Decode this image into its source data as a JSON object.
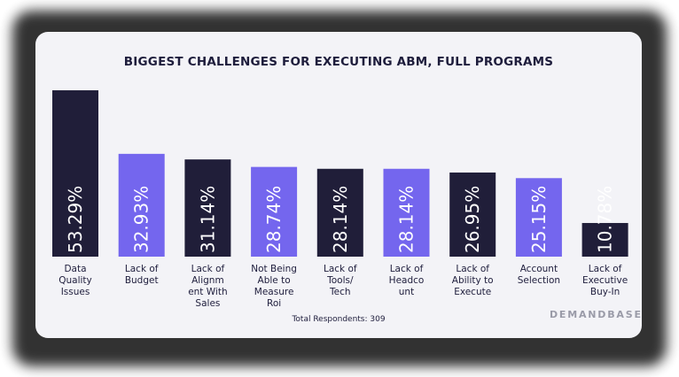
{
  "title": "BIGGEST CHALLENGES FOR EXECUTING ABM, FULL PROGRAMS",
  "footnote": "Total Respondents: 309",
  "logo": "DEMANDBASE",
  "colors": {
    "dark": "#201e39",
    "purple": "#7466ee",
    "background": "#f3f3f7"
  },
  "chart_data": {
    "type": "bar",
    "title": "BIGGEST CHALLENGES FOR EXECUTING ABM, FULL PROGRAMS",
    "categories": [
      "Data Quality Issues",
      "Lack of Budget",
      "Lack of Alignm ent With Sales",
      "Not Being Able to Measure Roi",
      "Lack of Tools/ Tech",
      "Lack of Headco unt",
      "Lack of Ability to Execute",
      "Account Selection",
      "Lack of Executive Buy-In"
    ],
    "category_lines": [
      [
        "Data",
        "Quality",
        "Issues"
      ],
      [
        "Lack of",
        "Budget"
      ],
      [
        "Lack of",
        "Alignm",
        "ent With",
        "Sales"
      ],
      [
        "Not Being",
        "Able to",
        "Measure",
        "Roi"
      ],
      [
        "Lack of",
        "Tools/",
        "Tech"
      ],
      [
        "Lack of",
        "Headco",
        "unt"
      ],
      [
        "Lack of",
        "Ability to",
        "Execute"
      ],
      [
        "Account",
        "Selection"
      ],
      [
        "Lack of",
        "Executive",
        "Buy-In"
      ]
    ],
    "values": [
      53.29,
      32.93,
      31.14,
      28.74,
      28.14,
      28.14,
      26.95,
      25.15,
      10.78
    ],
    "value_labels": [
      "53.29%",
      "32.93%",
      "31.14%",
      "28.74%",
      "28.14%",
      "28.14%",
      "26.95%",
      "25.15%",
      "10.78%"
    ],
    "bar_colors": [
      "#201e39",
      "#7466ee",
      "#201e39",
      "#7466ee",
      "#201e39",
      "#7466ee",
      "#201e39",
      "#7466ee",
      "#201e39"
    ],
    "ylim": [
      0,
      55
    ],
    "grid": false,
    "legend": "none"
  }
}
